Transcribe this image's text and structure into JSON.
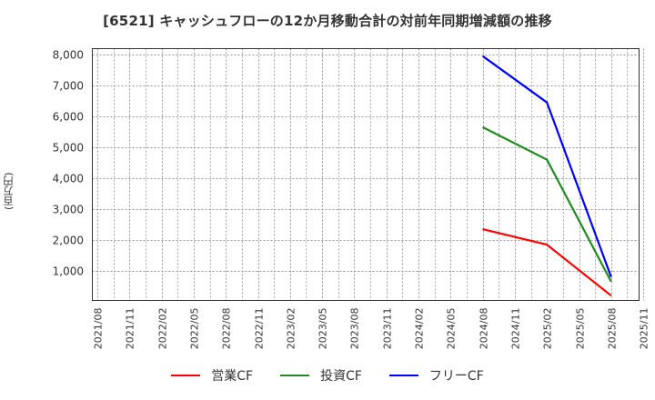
{
  "title": "[6521]  キャッシュフローの12か月移動合計の対前年同期増減額の推移",
  "chart_data": {
    "type": "line",
    "title": "[6521]  キャッシュフローの12か月移動合計の対前年同期増減額の推移",
    "xlabel": "",
    "ylabel": "(百万円)",
    "x_ticks": [
      "2021/08",
      "2021/11",
      "2022/02",
      "2022/05",
      "2022/08",
      "2022/11",
      "2023/02",
      "2023/05",
      "2023/08",
      "2023/11",
      "2024/02",
      "2024/05",
      "2024/08",
      "2024/11",
      "2025/02",
      "2025/05",
      "2025/08",
      "2025/11"
    ],
    "y_ticks": [
      1000,
      2000,
      3000,
      4000,
      5000,
      6000,
      7000,
      8000
    ],
    "y_tick_labels": [
      "1,000",
      "2,000",
      "3,000",
      "4,000",
      "5,000",
      "6,000",
      "7,000",
      "8,000"
    ],
    "ylim": [
      0,
      8200
    ],
    "grid": true,
    "legend_position": "bottom",
    "x": [
      "2024/08",
      "2025/02",
      "2025/08"
    ],
    "series": [
      {
        "name": "営業CF",
        "color": "#ff0000",
        "values": [
          2350,
          1850,
          200
        ]
      },
      {
        "name": "投資CF",
        "color": "#228b22",
        "values": [
          5650,
          4600,
          650
        ]
      },
      {
        "name": "フリーCF",
        "color": "#0000ff",
        "values": [
          7950,
          6450,
          800
        ]
      }
    ]
  },
  "legend": [
    {
      "label": "営業CF",
      "color": "#ff0000"
    },
    {
      "label": "投資CF",
      "color": "#228b22"
    },
    {
      "label": "フリーCF",
      "color": "#0000ff"
    }
  ]
}
